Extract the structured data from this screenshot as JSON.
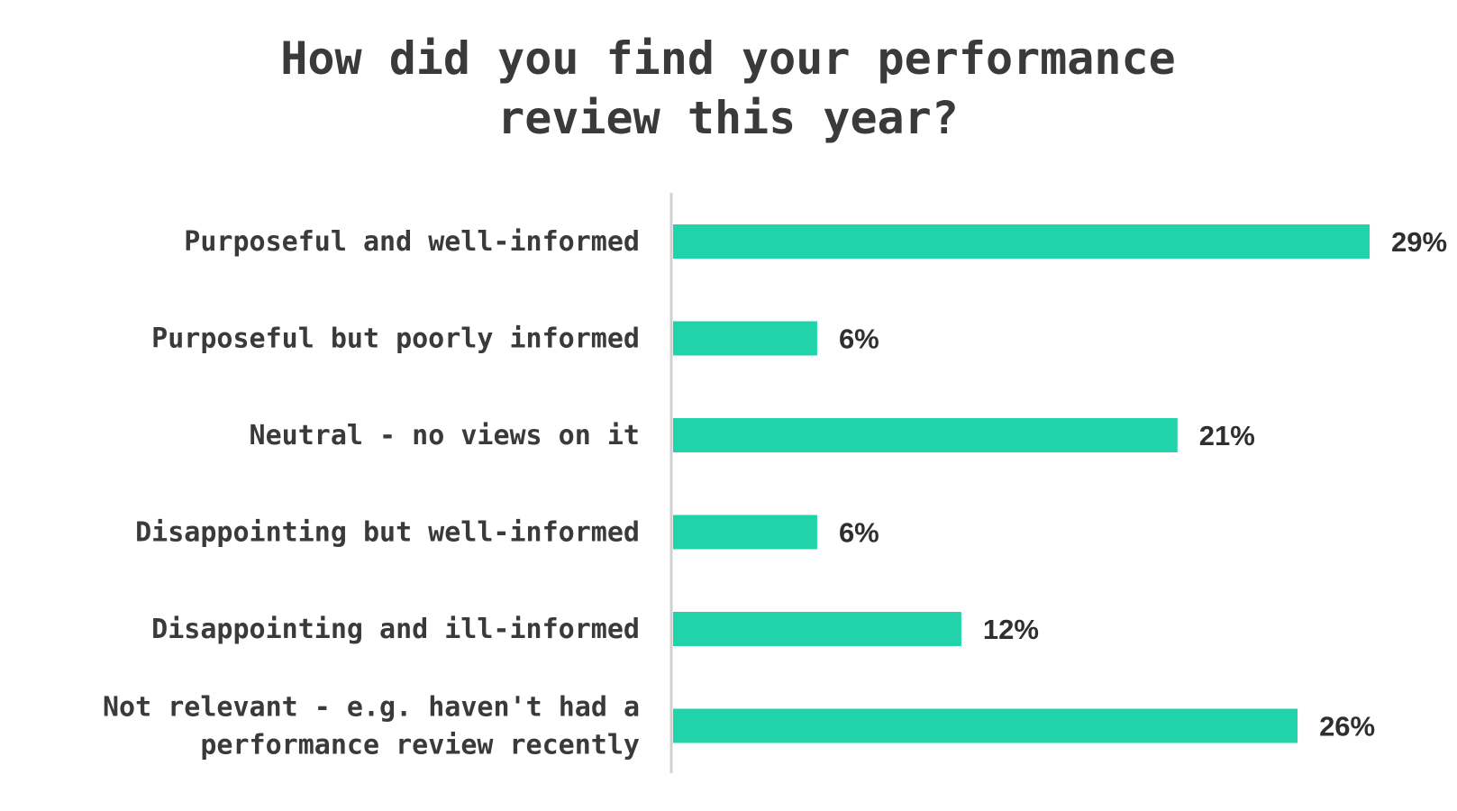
{
  "chart_data": {
    "type": "bar",
    "orientation": "horizontal",
    "title_lines": [
      "How did you find your performance",
      "review this year?"
    ],
    "categories": [
      [
        "Purposeful and well-informed"
      ],
      [
        "Purposeful but poorly informed"
      ],
      [
        "Neutral - no views on it"
      ],
      [
        "Disappointing but well-informed"
      ],
      [
        "Disappointing and ill-informed"
      ],
      [
        "Not relevant - e.g. haven't had a",
        "performance review recently"
      ]
    ],
    "values": [
      29,
      6,
      21,
      6,
      12,
      26
    ],
    "value_labels": [
      "29%",
      "6%",
      "21%",
      "6%",
      "12%",
      "26%"
    ],
    "unit": "%",
    "xlim": [
      0,
      32
    ],
    "bar_color": "#20d3a8",
    "axis_color": "#d0d0d0",
    "grid": false,
    "legend": "none"
  }
}
